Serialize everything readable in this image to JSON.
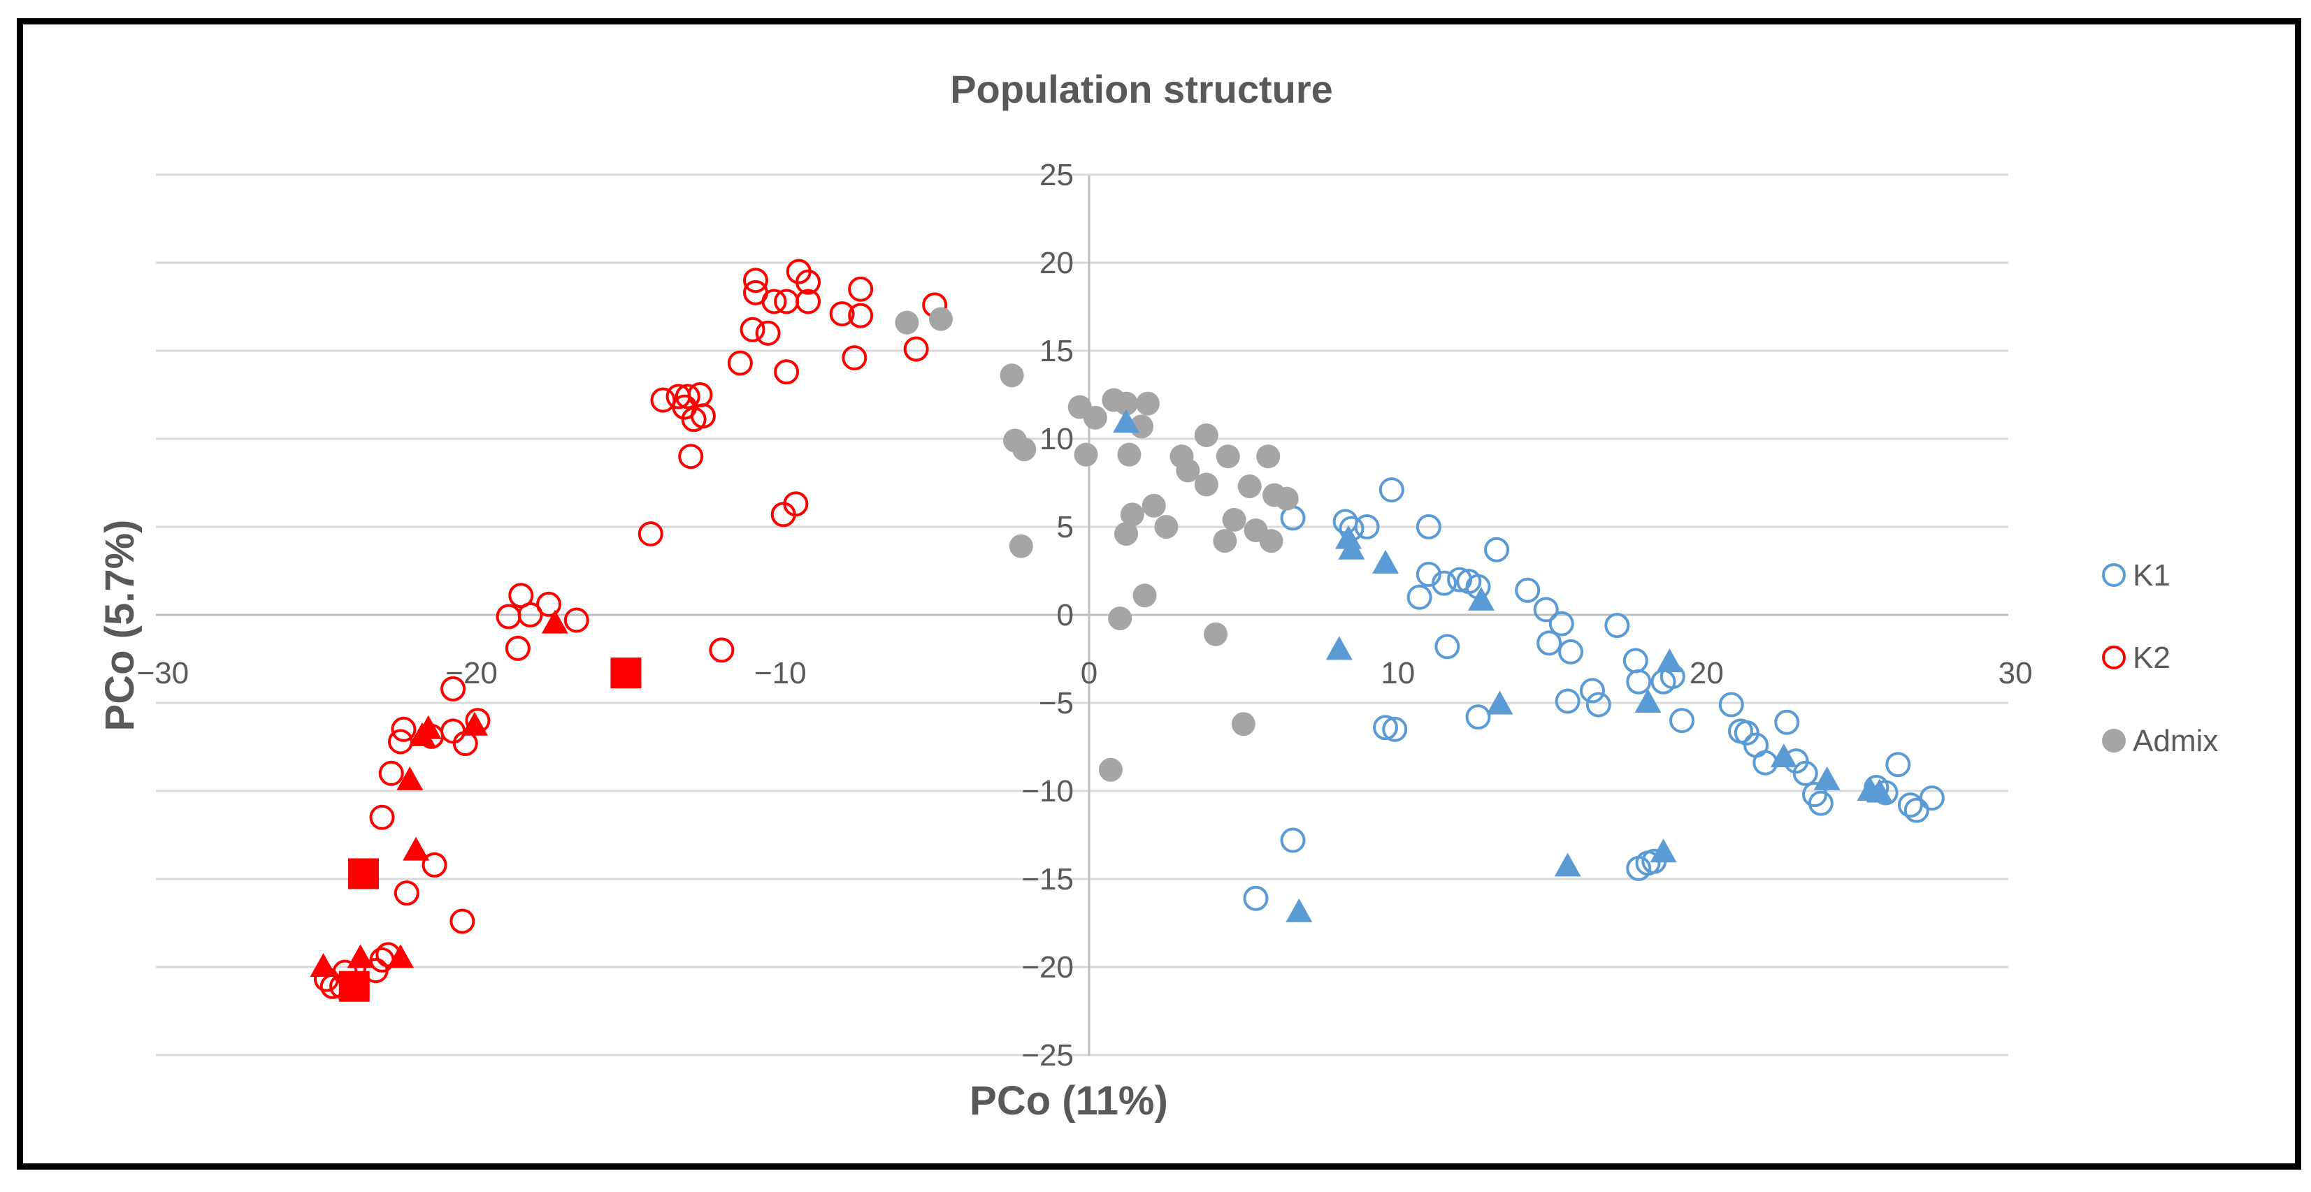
{
  "chart_data": {
    "type": "scatter",
    "title": "Population structure",
    "xlabel": "PCo (11%)",
    "ylabel": "PCo (5.7%)",
    "xlim": [
      -30,
      30
    ],
    "ylim": [
      -25,
      25
    ],
    "x_ticks": [
      -30,
      -20,
      -10,
      0,
      10,
      20,
      30
    ],
    "y_ticks": [
      25,
      20,
      15,
      10,
      5,
      0,
      -5,
      -10,
      -15,
      -20,
      -25
    ],
    "grid": true,
    "legend_position": "right",
    "legend": [
      "K1",
      "K2",
      "Admix"
    ],
    "colors": {
      "K1": "#5B9BD5",
      "K2": "#FF0000",
      "Admix": "#A5A5A5",
      "axis": "#BFBFBF",
      "text": "#595959"
    },
    "series": [
      {
        "name": "K1",
        "marker": "open-circle",
        "points": [
          [
            6.6,
            5.5
          ],
          [
            8.3,
            5.3
          ],
          [
            8.5,
            4.9
          ],
          [
            9,
            5
          ],
          [
            9.8,
            7.1
          ],
          [
            11,
            5
          ],
          [
            11,
            2.3
          ],
          [
            11.5,
            1.8
          ],
          [
            12,
            2
          ],
          [
            12.3,
            1.9
          ],
          [
            12.6,
            1.6
          ],
          [
            13.2,
            3.7
          ],
          [
            10.7,
            1
          ],
          [
            11.6,
            -1.8
          ],
          [
            14.2,
            1.4
          ],
          [
            14.8,
            0.3
          ],
          [
            15.3,
            -0.5
          ],
          [
            15.6,
            -2.1
          ],
          [
            14.9,
            -1.6
          ],
          [
            17.1,
            -0.6
          ],
          [
            17.7,
            -2.6
          ],
          [
            17.8,
            -3.8
          ],
          [
            18.6,
            -3.8
          ],
          [
            18.9,
            -3.5
          ],
          [
            16.3,
            -4.3
          ],
          [
            16.5,
            -5.1
          ],
          [
            15.5,
            -4.9
          ],
          [
            19.2,
            -6
          ],
          [
            20.8,
            -5.1
          ],
          [
            21.1,
            -6.6
          ],
          [
            21.3,
            -6.7
          ],
          [
            21.6,
            -7.4
          ],
          [
            21.9,
            -8.4
          ],
          [
            22.6,
            -6.1
          ],
          [
            22.9,
            -8.3
          ],
          [
            23.2,
            -9
          ],
          [
            23.5,
            -10.2
          ],
          [
            23.7,
            -10.7
          ],
          [
            25.5,
            -9.8
          ],
          [
            25.8,
            -10.1
          ],
          [
            26.2,
            -8.5
          ],
          [
            26.6,
            -10.8
          ],
          [
            26.8,
            -11.1
          ],
          [
            27.3,
            -10.4
          ],
          [
            9.6,
            -6.4
          ],
          [
            9.9,
            -6.5
          ],
          [
            12.6,
            -5.8
          ],
          [
            6.6,
            -12.8
          ],
          [
            5.4,
            -16.1
          ],
          [
            17.8,
            -14.4
          ],
          [
            18.1,
            -14.1
          ],
          [
            18.3,
            -14
          ]
        ]
      },
      {
        "name": "K2",
        "marker": "open-circle",
        "points": [
          [
            -10.8,
            19
          ],
          [
            -10.8,
            18.3
          ],
          [
            -10.2,
            17.8
          ],
          [
            -9.8,
            17.8
          ],
          [
            -9.4,
            19.5
          ],
          [
            -9.1,
            18.9
          ],
          [
            -9.1,
            17.8
          ],
          [
            -8,
            17.1
          ],
          [
            -7.4,
            17
          ],
          [
            -7.4,
            18.5
          ],
          [
            -7.6,
            14.6
          ],
          [
            -10.9,
            16.2
          ],
          [
            -10.4,
            16
          ],
          [
            -11.3,
            14.3
          ],
          [
            -9.8,
            13.8
          ],
          [
            -5.6,
            15.1
          ],
          [
            -5,
            17.6
          ],
          [
            -13.8,
            12.2
          ],
          [
            -13.3,
            12.4
          ],
          [
            -13,
            12.4
          ],
          [
            -12.6,
            12.5
          ],
          [
            -13.1,
            11.8
          ],
          [
            -12.8,
            11.1
          ],
          [
            -12.5,
            11.3
          ],
          [
            -12.9,
            9
          ],
          [
            -9.5,
            6.3
          ],
          [
            -9.9,
            5.7
          ],
          [
            -14.2,
            4.6
          ],
          [
            -11.9,
            -2
          ],
          [
            -18.4,
            1.1
          ],
          [
            -16.6,
            -0.3
          ],
          [
            -17.5,
            0.6
          ],
          [
            -18.1,
            0
          ],
          [
            -18.8,
            -0.1
          ],
          [
            -18.5,
            -1.9
          ],
          [
            -20.6,
            -4.2
          ],
          [
            -20.6,
            -6.6
          ],
          [
            -20.2,
            -7.3
          ],
          [
            -19.8,
            -6
          ],
          [
            -22.2,
            -6.5
          ],
          [
            -22.3,
            -7.2
          ],
          [
            -21.3,
            -6.9
          ],
          [
            -22.6,
            -9
          ],
          [
            -22.9,
            -11.5
          ],
          [
            -21.2,
            -14.2
          ],
          [
            -22.1,
            -15.8
          ],
          [
            -20.3,
            -17.4
          ],
          [
            -22.9,
            -19.6
          ],
          [
            -22.7,
            -19.3
          ],
          [
            -23.1,
            -20.2
          ],
          [
            -24.1,
            -20.3
          ],
          [
            -24.2,
            -21.1
          ],
          [
            -24.5,
            -21.1
          ],
          [
            -24.7,
            -20.7
          ]
        ]
      },
      {
        "name": "Admix",
        "marker": "filled-circle",
        "points": [
          [
            -5.9,
            16.6
          ],
          [
            -4.8,
            16.8
          ],
          [
            -2.5,
            13.6
          ],
          [
            -2.2,
            3.9
          ],
          [
            -2.4,
            9.9
          ],
          [
            -2.1,
            9.4
          ],
          [
            -0.3,
            11.8
          ],
          [
            0.2,
            11.2
          ],
          [
            0.8,
            12.2
          ],
          [
            -0.1,
            9.1
          ],
          [
            1.2,
            12
          ],
          [
            1.7,
            10.7
          ],
          [
            1.9,
            12
          ],
          [
            1.3,
            9.1
          ],
          [
            1.2,
            4.6
          ],
          [
            1.4,
            5.7
          ],
          [
            2.1,
            6.2
          ],
          [
            2.5,
            5
          ],
          [
            1.8,
            1.1
          ],
          [
            1,
            -0.2
          ],
          [
            3,
            9
          ],
          [
            3.2,
            8.2
          ],
          [
            3.8,
            10.2
          ],
          [
            3.8,
            7.4
          ],
          [
            4.5,
            9
          ],
          [
            4.7,
            5.4
          ],
          [
            4.4,
            4.2
          ],
          [
            5.2,
            7.3
          ],
          [
            5.4,
            4.8
          ],
          [
            5.8,
            9
          ],
          [
            5.9,
            4.2
          ],
          [
            6,
            6.8
          ],
          [
            6.4,
            6.6
          ],
          [
            4.1,
            -1.1
          ],
          [
            5,
            -6.2
          ],
          [
            0.7,
            -8.8
          ]
        ]
      },
      {
        "name": "K1 (triangles)",
        "marker": "filled-triangle",
        "color_key": "K1",
        "points": [
          [
            1.2,
            10.9
          ],
          [
            8.1,
            -2
          ],
          [
            8.4,
            4.3
          ],
          [
            8.5,
            3.7
          ],
          [
            9.6,
            2.9
          ],
          [
            12.7,
            0.8
          ],
          [
            13.3,
            -5.1
          ],
          [
            18.1,
            -5
          ],
          [
            18.8,
            -2.7
          ],
          [
            22.5,
            -8.1
          ],
          [
            23.9,
            -9.4
          ],
          [
            25.3,
            -10
          ],
          [
            25.6,
            -10.1
          ],
          [
            18.6,
            -13.5
          ],
          [
            15.5,
            -14.3
          ],
          [
            6.8,
            -16.9
          ]
        ]
      },
      {
        "name": "K2 (triangles)",
        "marker": "filled-triangle",
        "color_key": "K2",
        "points": [
          [
            -17.3,
            -0.5
          ],
          [
            -21.4,
            -6.5
          ],
          [
            -21.6,
            -6.9
          ],
          [
            -19.9,
            -6.3
          ],
          [
            -22,
            -9.4
          ],
          [
            -21.8,
            -13.4
          ],
          [
            -22.3,
            -19.5
          ],
          [
            -23.6,
            -19.5
          ],
          [
            -24.8,
            -20
          ]
        ]
      },
      {
        "name": "K2 (squares)",
        "marker": "filled-square",
        "color_key": "K2",
        "points": [
          [
            -15,
            -3.3
          ],
          [
            -23.5,
            -14.7
          ],
          [
            -23.8,
            -21.1
          ]
        ]
      }
    ]
  }
}
